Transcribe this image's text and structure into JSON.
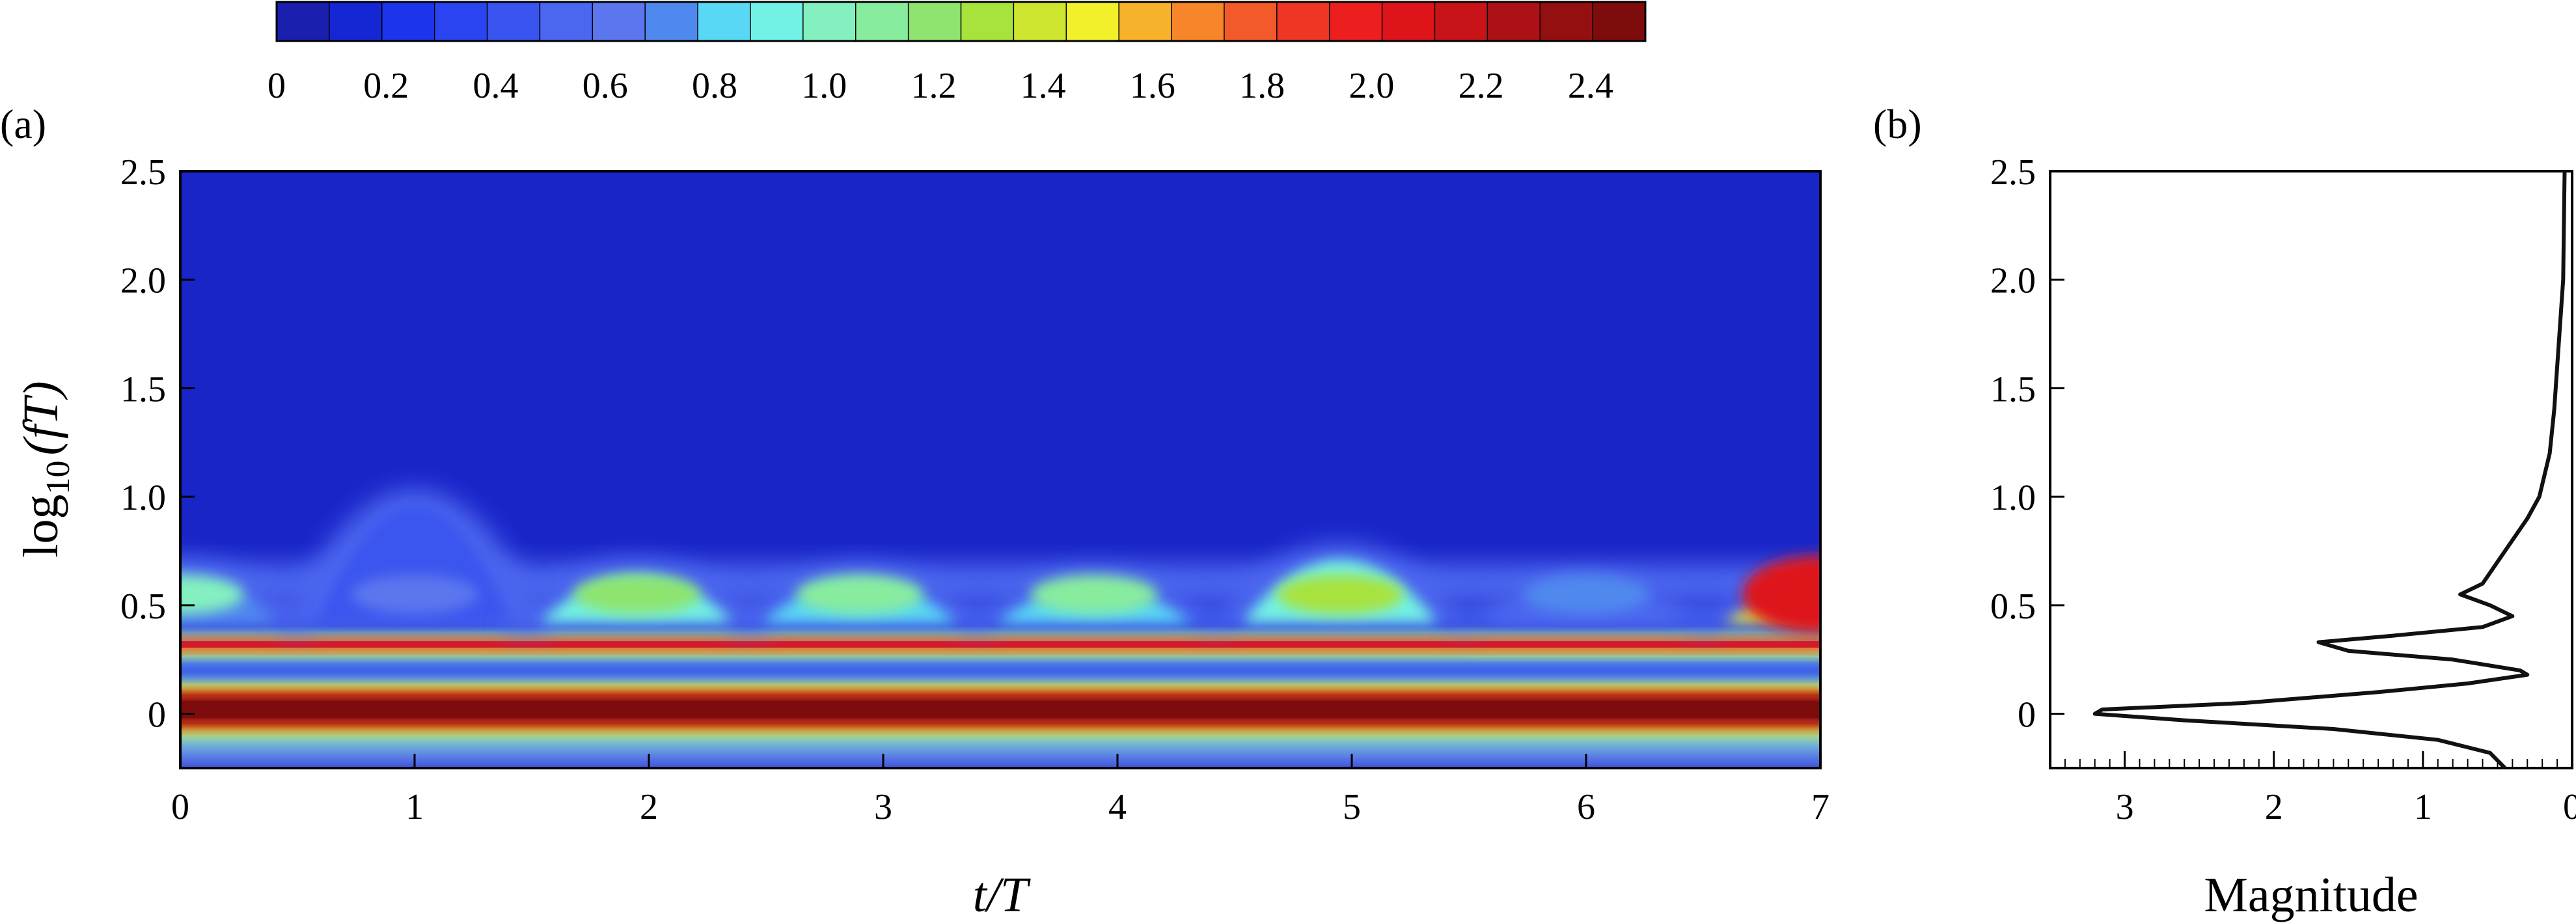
{
  "chart_data": [
    {
      "type": "colorbar",
      "tick_labels": [
        "0",
        "0.2",
        "0.4",
        "0.6",
        "0.8",
        "1.0",
        "1.2",
        "1.4",
        "1.6",
        "1.8",
        "2.0",
        "2.2",
        "2.4"
      ],
      "range": [
        0,
        2.5
      ],
      "levels": 26,
      "colors": [
        "#1a1fae",
        "#1526d4",
        "#1c34ec",
        "#2a44f1",
        "#3a55ef",
        "#4b66ef",
        "#5c77ee",
        "#5089ee",
        "#58d8f4",
        "#72f2e4",
        "#84f0c0",
        "#88ec9e",
        "#8ee46e",
        "#a8e23c",
        "#cfe630",
        "#f2f02a",
        "#f7b12a",
        "#f7852a",
        "#f25a2a",
        "#ef3624",
        "#ec1e1e",
        "#de141a",
        "#c81418",
        "#ad1115",
        "#941010",
        "#7f0c0c"
      ]
    },
    {
      "type": "heatmap",
      "panel_label": "(a)",
      "xlabel_italic": "t/T",
      "ylabel_prefix": "log",
      "ylabel_subscript": "10",
      "ylabel_suffix": "(fT)",
      "xlim": [
        0,
        7
      ],
      "ylim": [
        -0.25,
        2.5
      ],
      "x_ticks": [
        "0",
        "1",
        "2",
        "3",
        "4",
        "5",
        "6",
        "7"
      ],
      "y_ticks": [
        "0",
        "0.5",
        "1.0",
        "1.5",
        "2.0",
        "2.5"
      ],
      "bands": [
        {
          "y": 0.0,
          "value_range": [
            2.1,
            2.5
          ]
        },
        {
          "y": 0.32,
          "value_range": [
            1.6,
            2.0
          ]
        },
        {
          "y": 0.45,
          "value_range": [
            0.2,
            0.5
          ]
        },
        {
          "y": 0.62,
          "value_range": [
            0.8,
            1.3
          ]
        }
      ],
      "bursts_t": [
        1,
        2,
        3,
        4,
        5,
        6,
        7
      ]
    },
    {
      "type": "line",
      "panel_label": "(b)",
      "xlabel": "Magnitude",
      "x_ticks": [
        "3",
        "2",
        "1",
        "0"
      ],
      "y_ticks": [
        "0",
        "0.5",
        "1.0",
        "1.5",
        "2.0",
        "2.5"
      ],
      "xlim": [
        3.5,
        0
      ],
      "ylim": [
        -0.25,
        2.5
      ],
      "series": [
        {
          "x": [
            0.45,
            0.55,
            0.9,
            1.6,
            2.6,
            3.2,
            3.15,
            2.2,
            1.3,
            0.7,
            0.3,
            0.35,
            0.8,
            1.5,
            1.7,
            1.2,
            0.6,
            0.4,
            0.55,
            0.75,
            0.6,
            0.5,
            0.4,
            0.3,
            0.22,
            0.15,
            0.12,
            0.1,
            0.08,
            0.06,
            0.05
          ],
          "y": [
            -0.25,
            -0.18,
            -0.12,
            -0.07,
            -0.03,
            0.0,
            0.02,
            0.05,
            0.1,
            0.14,
            0.18,
            0.2,
            0.25,
            0.29,
            0.33,
            0.36,
            0.4,
            0.45,
            0.5,
            0.55,
            0.6,
            0.7,
            0.8,
            0.9,
            1.0,
            1.2,
            1.4,
            1.6,
            1.8,
            2.0,
            2.5
          ]
        }
      ]
    }
  ]
}
